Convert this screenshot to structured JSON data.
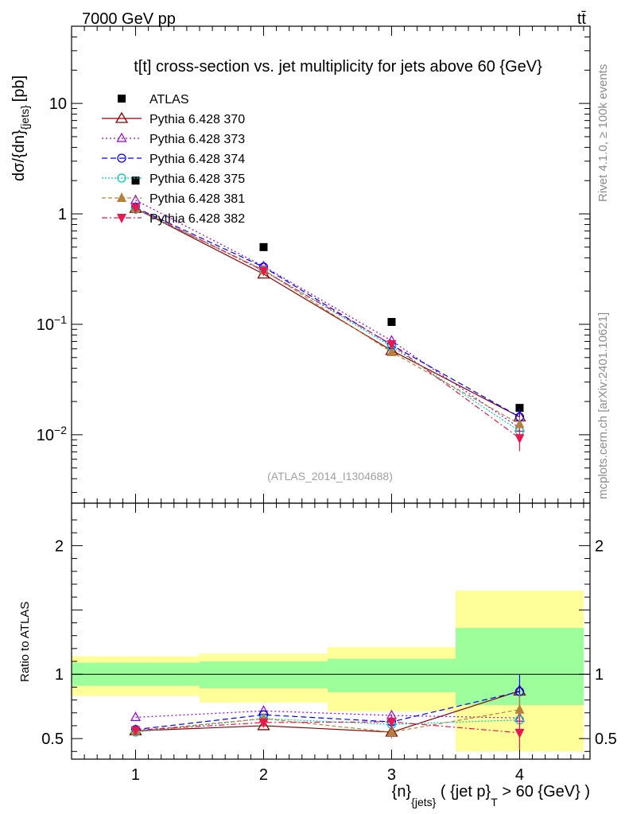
{
  "header": {
    "left": "7000 GeV pp",
    "right": "tt̄"
  },
  "side_text": {
    "rivet": "Rivet 4.1.0, ≥ 100k events",
    "mcplots": "mcplots.cern.ch [arXiv:2401.10621]"
  },
  "watermark": "(ATLAS_2014_I1304688)",
  "colors": {
    "atlas": "#000000",
    "p370": "#8b0000",
    "p373": "#9400d3",
    "p374": "#0000ff",
    "p375": "#00cdb0",
    "p381": "#b5803e",
    "p382": "#e8174f",
    "band_green": "#9cff9c",
    "band_yellow": "#ffff99"
  },
  "chart_data": [
    {
      "type": "scatter",
      "panel": "main",
      "title": "t[t] cross-section vs. jet multiplicity for jets above 60 {GeV}",
      "ylabel_main": "dσ/{dn}",
      "ylabel_sub": "{jets}",
      "ylabel_unit": "[pb]",
      "yscale": "log",
      "xlim": [
        0.5,
        4.55
      ],
      "ylim": [
        0.0024,
        50
      ],
      "y_ticks": [
        {
          "value": 10,
          "label": "10"
        },
        {
          "value": 1,
          "label": "1"
        },
        {
          "value": 0.1,
          "label": "10",
          "exp": "−1"
        },
        {
          "value": 0.01,
          "label": "10",
          "exp": "−2"
        }
      ],
      "x": [
        1,
        2,
        3,
        4
      ],
      "series": [
        {
          "name": "ATLAS",
          "key": "atlas",
          "style": "data",
          "values": [
            2.0,
            0.5,
            0.105,
            0.0175
          ]
        },
        {
          "name": "Pythia 6.428 370",
          "key": "p370",
          "style": "solid",
          "marker": "triangle-open",
          "values": [
            1.12,
            0.285,
            0.058,
            0.0145
          ],
          "err": [
            0,
            0,
            0,
            0
          ]
        },
        {
          "name": "Pythia 6.428 373",
          "key": "p373",
          "style": "dotted",
          "marker": "triangle-open-small",
          "values": [
            1.33,
            0.335,
            0.071,
            0.0115
          ],
          "err": [
            0,
            0,
            0,
            0
          ]
        },
        {
          "name": "Pythia 6.428 374",
          "key": "p374",
          "style": "dashed",
          "marker": "circle-open",
          "values": [
            1.14,
            0.33,
            0.065,
            0.0145
          ],
          "err": [
            0,
            0,
            0.005,
            0.0025
          ]
        },
        {
          "name": "Pythia 6.428 375",
          "key": "p375",
          "style": "dotted-dense",
          "marker": "circle-open",
          "values": [
            1.1,
            0.31,
            0.063,
            0.0108
          ],
          "err": [
            0,
            0,
            0.005,
            0.0015
          ]
        },
        {
          "name": "Pythia 6.428 381",
          "key": "p381",
          "style": "dashed-long",
          "marker": "triangle-filled",
          "values": [
            1.12,
            0.31,
            0.056,
            0.0125
          ],
          "err": [
            0,
            0,
            0.004,
            0.002
          ]
        },
        {
          "name": "Pythia 6.428 382",
          "key": "p382",
          "style": "dashdot",
          "marker": "triangle-down-filled",
          "values": [
            1.13,
            0.305,
            0.066,
            0.0093
          ],
          "err": [
            0,
            0,
            0.005,
            0.0022
          ]
        }
      ]
    },
    {
      "type": "scatter",
      "panel": "ratio",
      "ylabel": "Ratio to ATLAS",
      "xlabel_parts": [
        "{n}",
        "{jets}",
        " ( {jet p}",
        "T",
        " > 60 {GeV} )"
      ],
      "xlim": [
        0.5,
        4.55
      ],
      "ylim": [
        0.34,
        2.33
      ],
      "y_ticks": [
        {
          "value": 2,
          "label": "2"
        },
        {
          "value": 1,
          "label": "1"
        },
        {
          "value": 0.5,
          "label": "0.5"
        }
      ],
      "x_ticks": [
        {
          "value": 1,
          "label": "1"
        },
        {
          "value": 2,
          "label": "2"
        },
        {
          "value": 3,
          "label": "3"
        },
        {
          "value": 4,
          "label": "4"
        }
      ],
      "bands": [
        {
          "x0": 0.5,
          "x1": 1.5,
          "green": [
            0.91,
            1.09
          ],
          "yellow": [
            0.83,
            1.14
          ]
        },
        {
          "x0": 1.5,
          "x1": 2.5,
          "green": [
            0.89,
            1.1
          ],
          "yellow": [
            0.78,
            1.16
          ]
        },
        {
          "x0": 2.5,
          "x1": 3.5,
          "green": [
            0.86,
            1.12
          ],
          "yellow": [
            0.71,
            1.21
          ]
        },
        {
          "x0": 3.5,
          "x1": 4.5,
          "green": [
            0.76,
            1.36
          ],
          "yellow": [
            0.4,
            1.65
          ]
        }
      ],
      "x": [
        1,
        2,
        3,
        4
      ],
      "series": [
        {
          "name": "Pythia 6.428 370",
          "key": "p370",
          "style": "solid",
          "marker": "triangle-open",
          "values": [
            0.56,
            0.6,
            0.55,
            0.87
          ],
          "err": [
            0,
            0,
            0,
            0
          ]
        },
        {
          "name": "Pythia 6.428 373",
          "key": "p373",
          "style": "dotted",
          "marker": "triangle-open-small",
          "values": [
            0.665,
            0.715,
            0.68,
            0.66
          ],
          "err": [
            0,
            0,
            0,
            0
          ]
        },
        {
          "name": "Pythia 6.428 374",
          "key": "p374",
          "style": "dashed",
          "marker": "circle-open",
          "values": [
            0.57,
            0.685,
            0.63,
            0.865
          ],
          "err": [
            0,
            0,
            0.05,
            0.13
          ]
        },
        {
          "name": "Pythia 6.428 375",
          "key": "p375",
          "style": "dotted-dense",
          "marker": "circle-open",
          "values": [
            0.55,
            0.655,
            0.61,
            0.645
          ],
          "err": [
            0,
            0,
            0.05,
            0.08
          ]
        },
        {
          "name": "Pythia 6.428 381",
          "key": "p381",
          "style": "dashed-long",
          "marker": "triangle-filled",
          "values": [
            0.56,
            0.655,
            0.55,
            0.725
          ],
          "err": [
            0,
            0,
            0.05,
            0.12
          ]
        },
        {
          "name": "Pythia 6.428 382",
          "key": "p382",
          "style": "dashdot",
          "marker": "triangle-down-filled",
          "values": [
            0.565,
            0.625,
            0.63,
            0.545
          ],
          "err": [
            0,
            0,
            0.06,
            0.13
          ]
        }
      ]
    }
  ]
}
